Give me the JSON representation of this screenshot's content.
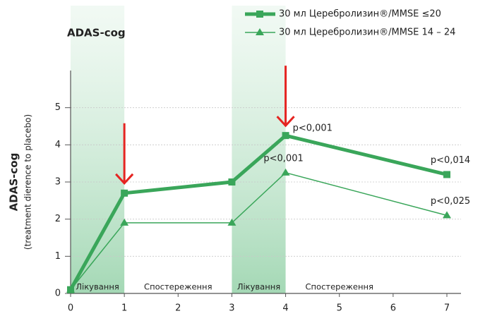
{
  "chart_data": {
    "type": "line",
    "title": "ADAS-cog",
    "y_label": "ADAS-cog",
    "y_sublabel": "(treatment dierence to placebo)",
    "xlim": [
      0,
      7
    ],
    "xticks": [
      0,
      1,
      2,
      3,
      4,
      5,
      6,
      7
    ],
    "ylim": [
      0,
      6
    ],
    "yticks": [
      0,
      1,
      2,
      3,
      4,
      5
    ],
    "grid": true,
    "legend": "top-right",
    "phases": [
      {
        "label": "Лікування",
        "start": 0,
        "end": 1,
        "shaded": true
      },
      {
        "label": "Спостереження",
        "start": 1,
        "end": 3,
        "shaded": false
      },
      {
        "label": "Лікування",
        "start": 3,
        "end": 4,
        "shaded": true
      },
      {
        "label": "Спостереження",
        "start": 4,
        "end": 7,
        "shaded": false
      }
    ],
    "arrows": [
      1,
      4
    ],
    "x": [
      0,
      1,
      3,
      4,
      7
    ],
    "series": [
      {
        "name": "30 мл Церебролизин®/MMSE ≤20",
        "color": "#3aa65a",
        "marker": "square",
        "width": 5,
        "values": [
          0.1,
          2.7,
          3.0,
          4.25,
          3.2
        ],
        "p_labels": [
          null,
          null,
          null,
          "p<0,001",
          "p<0,014"
        ]
      },
      {
        "name": "30 мл Церебролизин®/MMSE 14 – 24",
        "color": "#3aa65a",
        "marker": "triangle",
        "width": 1.5,
        "values": [
          0.1,
          1.9,
          1.9,
          3.25,
          2.1
        ],
        "p_labels": [
          null,
          null,
          null,
          "p<0,001",
          "p<0,025"
        ]
      }
    ]
  }
}
